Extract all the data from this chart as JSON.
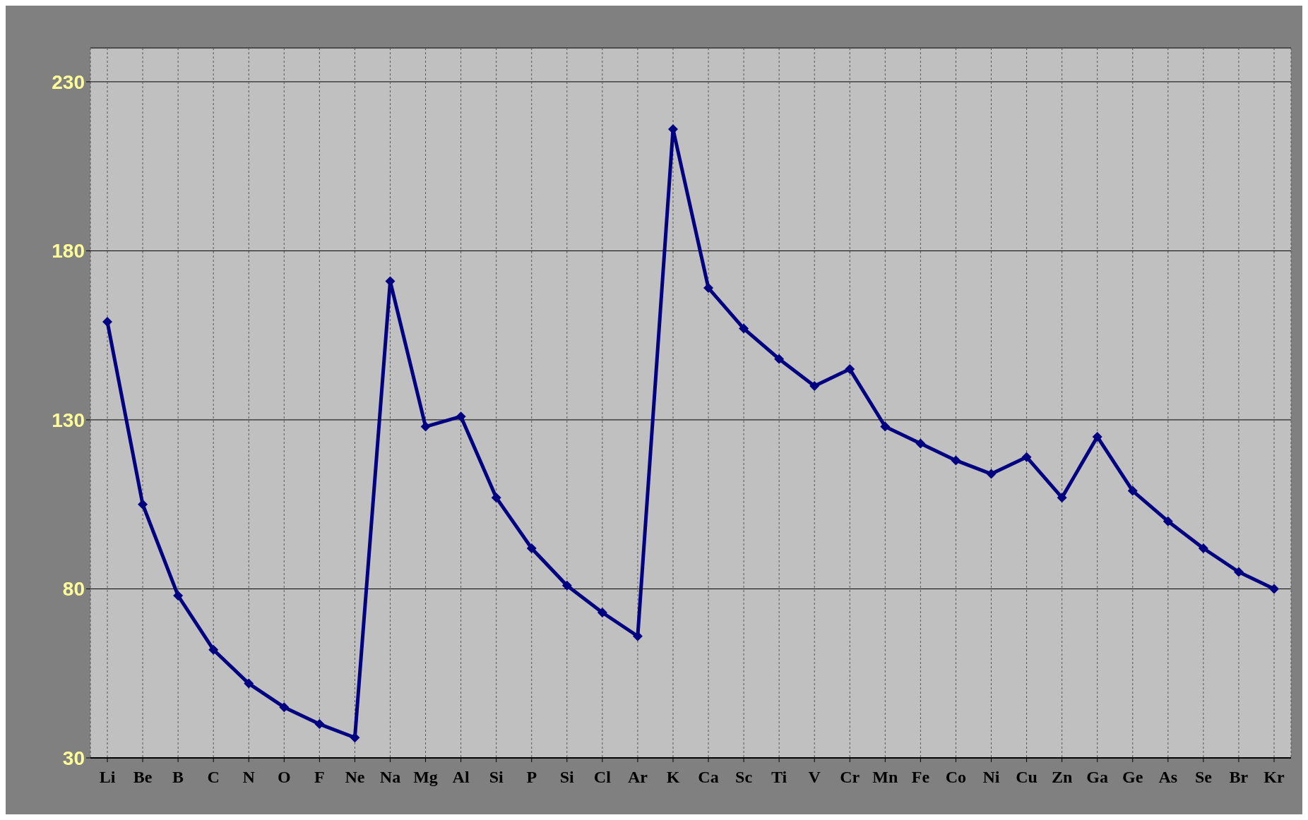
{
  "chart_data": {
    "type": "line",
    "categories": [
      "Li",
      "Be",
      "B",
      "C",
      "N",
      "O",
      "F",
      "Ne",
      "Na",
      "Mg",
      "Al",
      "Si",
      "P",
      "Si",
      "Cl",
      "Ar",
      "K",
      "Ca",
      "Sc",
      "Ti",
      "V",
      "Cr",
      "Mn",
      "Fe",
      "Co",
      "Ni",
      "Cu",
      "Zn",
      "Ga",
      "Ge",
      "As",
      "Se",
      "Br",
      "Kr"
    ],
    "series": [
      {
        "color": "#000080",
        "values": [
          159,
          105,
          78,
          62,
          52,
          45,
          40,
          36,
          171,
          128,
          131,
          107,
          92,
          81,
          73,
          66,
          216,
          169,
          157,
          148,
          140,
          145,
          128,
          123,
          118,
          114,
          119,
          107,
          125,
          109,
          100,
          92,
          85,
          80
        ]
      }
    ],
    "ylim": [
      30,
      240
    ],
    "yticks": [
      30,
      80,
      130,
      180,
      230
    ],
    "grid": true,
    "marker": "diamond",
    "line_style": "solid"
  }
}
